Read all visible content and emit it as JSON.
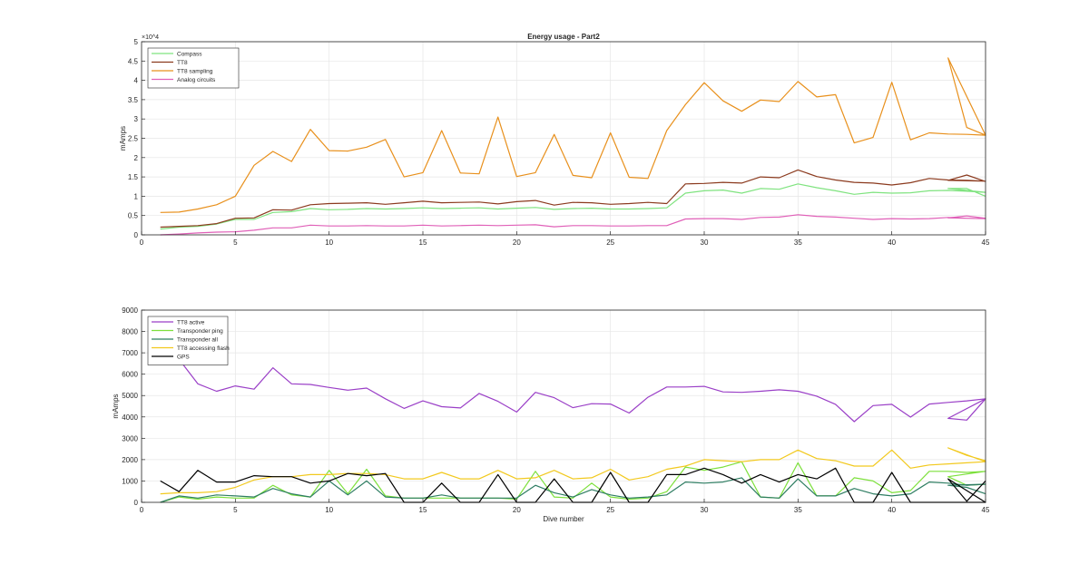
{
  "figure": {
    "background": "#ffffff",
    "axes_color": "#262626",
    "grid_color": "#e6e6e6"
  },
  "chart_data": [
    {
      "type": "line",
      "title": "Energy usage - Part2",
      "xlabel": "",
      "ylabel": "mAmps",
      "xlim": [
        0,
        45
      ],
      "ylim": [
        0,
        50000
      ],
      "xticks": [
        0,
        5,
        10,
        15,
        20,
        25,
        30,
        35,
        40,
        45
      ],
      "yticks": [
        0,
        5000,
        10000,
        15000,
        20000,
        25000,
        30000,
        35000,
        40000,
        45000,
        50000
      ],
      "ytick_labels": [
        "0",
        "0.5",
        "1",
        "1.5",
        "2",
        "2.5",
        "3",
        "3.5",
        "4",
        "4.5",
        "5"
      ],
      "y_exponent": "×10^4",
      "grid": true,
      "legend_position": "top-left",
      "x": [
        1,
        2,
        3,
        4,
        5,
        6,
        7,
        8,
        9,
        10,
        11,
        12,
        13,
        14,
        15,
        16,
        17,
        18,
        19,
        20,
        21,
        22,
        23,
        24,
        25,
        26,
        27,
        28,
        29,
        30,
        31,
        32,
        33,
        34,
        35,
        36,
        37,
        38,
        39,
        40,
        41,
        42,
        43,
        44,
        45,
        43,
        44,
        45
      ],
      "series": [
        {
          "name": "Compass",
          "color": "#7fe37f",
          "values": [
            1500,
            2000,
            2200,
            2800,
            4000,
            4000,
            5800,
            6000,
            6800,
            6500,
            6600,
            6800,
            6700,
            6800,
            7000,
            6800,
            6900,
            7000,
            6700,
            6900,
            7100,
            6600,
            6800,
            6900,
            6700,
            6700,
            6800,
            7000,
            10800,
            11400,
            11600,
            10800,
            12000,
            11800,
            13200,
            12200,
            11400,
            10500,
            11000,
            10800,
            10900,
            11400,
            11500,
            11300,
            11000,
            12000,
            12000,
            10000
          ]
        },
        {
          "name": "TT8",
          "color": "#8b3a1e",
          "values": [
            2000,
            2200,
            2400,
            2900,
            4300,
            4400,
            6500,
            6400,
            7800,
            8100,
            8200,
            8300,
            7900,
            8300,
            8700,
            8300,
            8400,
            8500,
            8000,
            8600,
            8900,
            7700,
            8400,
            8300,
            7900,
            8100,
            8400,
            8100,
            13200,
            13300,
            13600,
            13400,
            15000,
            14800,
            16800,
            15100,
            14200,
            13600,
            13400,
            12900,
            13500,
            14600,
            14200,
            14100,
            13900,
            14100,
            15500,
            13800
          ]
        },
        {
          "name": "TT8 sampling",
          "color": "#e8901c",
          "values": [
            5800,
            5900,
            6700,
            7800,
            10000,
            18000,
            21600,
            19000,
            27300,
            21800,
            21700,
            22700,
            24700,
            15000,
            16100,
            27000,
            16000,
            15800,
            30500,
            15100,
            16100,
            26000,
            15400,
            14800,
            26400,
            14900,
            14600,
            27000,
            33700,
            39400,
            34700,
            32000,
            34900,
            34500,
            39700,
            35700,
            36300,
            23800,
            25200,
            39500,
            24600,
            26400,
            26100,
            26000,
            25800,
            45800,
            27800,
            25800
          ]
        },
        {
          "name": "Analog circuits",
          "color": "#e060b8",
          "values": [
            0,
            200,
            500,
            700,
            800,
            1200,
            1800,
            1800,
            2500,
            2300,
            2300,
            2400,
            2300,
            2300,
            2500,
            2300,
            2400,
            2500,
            2400,
            2500,
            2600,
            2100,
            2400,
            2400,
            2300,
            2300,
            2400,
            2400,
            4100,
            4200,
            4200,
            4000,
            4500,
            4600,
            5200,
            4800,
            4600,
            4300,
            4000,
            4200,
            4100,
            4200,
            4500,
            4300,
            4200,
            4400,
            4900,
            4300
          ]
        }
      ]
    },
    {
      "type": "line",
      "title": "",
      "xlabel": "Dive number",
      "ylabel": "mAmps",
      "xlim": [
        0,
        45
      ],
      "ylim": [
        0,
        9000
      ],
      "xticks": [
        0,
        5,
        10,
        15,
        20,
        25,
        30,
        35,
        40,
        45
      ],
      "yticks": [
        0,
        1000,
        2000,
        3000,
        4000,
        5000,
        6000,
        7000,
        8000,
        9000
      ],
      "ytick_labels": [
        "0",
        "1000",
        "2000",
        "3000",
        "4000",
        "5000",
        "6000",
        "7000",
        "8000",
        "9000"
      ],
      "grid": true,
      "legend_position": "top-left",
      "x": [
        1,
        2,
        3,
        4,
        5,
        6,
        7,
        8,
        9,
        10,
        11,
        12,
        13,
        14,
        15,
        16,
        17,
        18,
        19,
        20,
        21,
        22,
        23,
        24,
        25,
        26,
        27,
        28,
        29,
        30,
        31,
        32,
        33,
        34,
        35,
        36,
        37,
        38,
        39,
        40,
        41,
        42,
        43,
        44,
        45,
        43,
        44,
        45
      ],
      "series": [
        {
          "name": "TT8 active",
          "color": "#9a3fc7",
          "values": [
            7200,
            6700,
            5550,
            5200,
            5450,
            5300,
            6300,
            5550,
            5520,
            5380,
            5250,
            5350,
            4850,
            4400,
            4750,
            4480,
            4420,
            5100,
            4730,
            4230,
            5150,
            4900,
            4430,
            4620,
            4600,
            4180,
            4920,
            5400,
            5400,
            5430,
            5170,
            5150,
            5200,
            5270,
            5200,
            4970,
            4590,
            3780,
            4530,
            4590,
            3990,
            4600,
            4680,
            4750,
            4850,
            3930,
            3850,
            4850
          ]
        },
        {
          "name": "Transponder ping",
          "color": "#7de03c",
          "values": [
            0,
            250,
            150,
            250,
            200,
            200,
            800,
            350,
            250,
            1500,
            400,
            1550,
            300,
            200,
            200,
            200,
            200,
            200,
            200,
            150,
            1450,
            250,
            200,
            900,
            250,
            150,
            200,
            500,
            1650,
            1500,
            1650,
            1900,
            250,
            200,
            1850,
            300,
            300,
            1150,
            1000,
            450,
            550,
            1450,
            1450,
            1400,
            1450,
            1200,
            800,
            850
          ]
        },
        {
          "name": "Transponder all",
          "color": "#2e7d62",
          "values": [
            0,
            300,
            200,
            350,
            300,
            250,
            650,
            400,
            250,
            1000,
            350,
            1000,
            250,
            200,
            200,
            350,
            200,
            200,
            200,
            200,
            800,
            450,
            250,
            600,
            350,
            200,
            250,
            350,
            950,
            900,
            950,
            1150,
            250,
            200,
            1100,
            300,
            300,
            650,
            400,
            300,
            400,
            950,
            900,
            800,
            850,
            800,
            700,
            400
          ]
        },
        {
          "name": "TT8 accessing flash",
          "color": "#f2c91e",
          "values": [
            400,
            450,
            450,
            500,
            700,
            1050,
            1200,
            1200,
            1300,
            1300,
            1350,
            1350,
            1300,
            1100,
            1100,
            1400,
            1100,
            1100,
            1500,
            1100,
            1150,
            1500,
            1100,
            1150,
            1550,
            1050,
            1200,
            1550,
            1700,
            2000,
            1950,
            1900,
            2000,
            2000,
            2450,
            2050,
            1950,
            1700,
            1700,
            2450,
            1600,
            1750,
            1800,
            1850,
            1900,
            2550,
            2200,
            1950
          ]
        },
        {
          "name": "GPS",
          "color": "#000000",
          "values": [
            1000,
            500,
            1500,
            950,
            950,
            1250,
            1200,
            1200,
            900,
            1000,
            1350,
            1250,
            1350,
            0,
            0,
            900,
            0,
            0,
            1300,
            0,
            0,
            1100,
            0,
            0,
            1400,
            0,
            0,
            1300,
            1300,
            1600,
            1300,
            900,
            1300,
            950,
            1300,
            1100,
            1600,
            0,
            0,
            1400,
            0,
            0,
            0,
            0,
            0,
            1100,
            50,
            1000
          ]
        }
      ]
    }
  ]
}
